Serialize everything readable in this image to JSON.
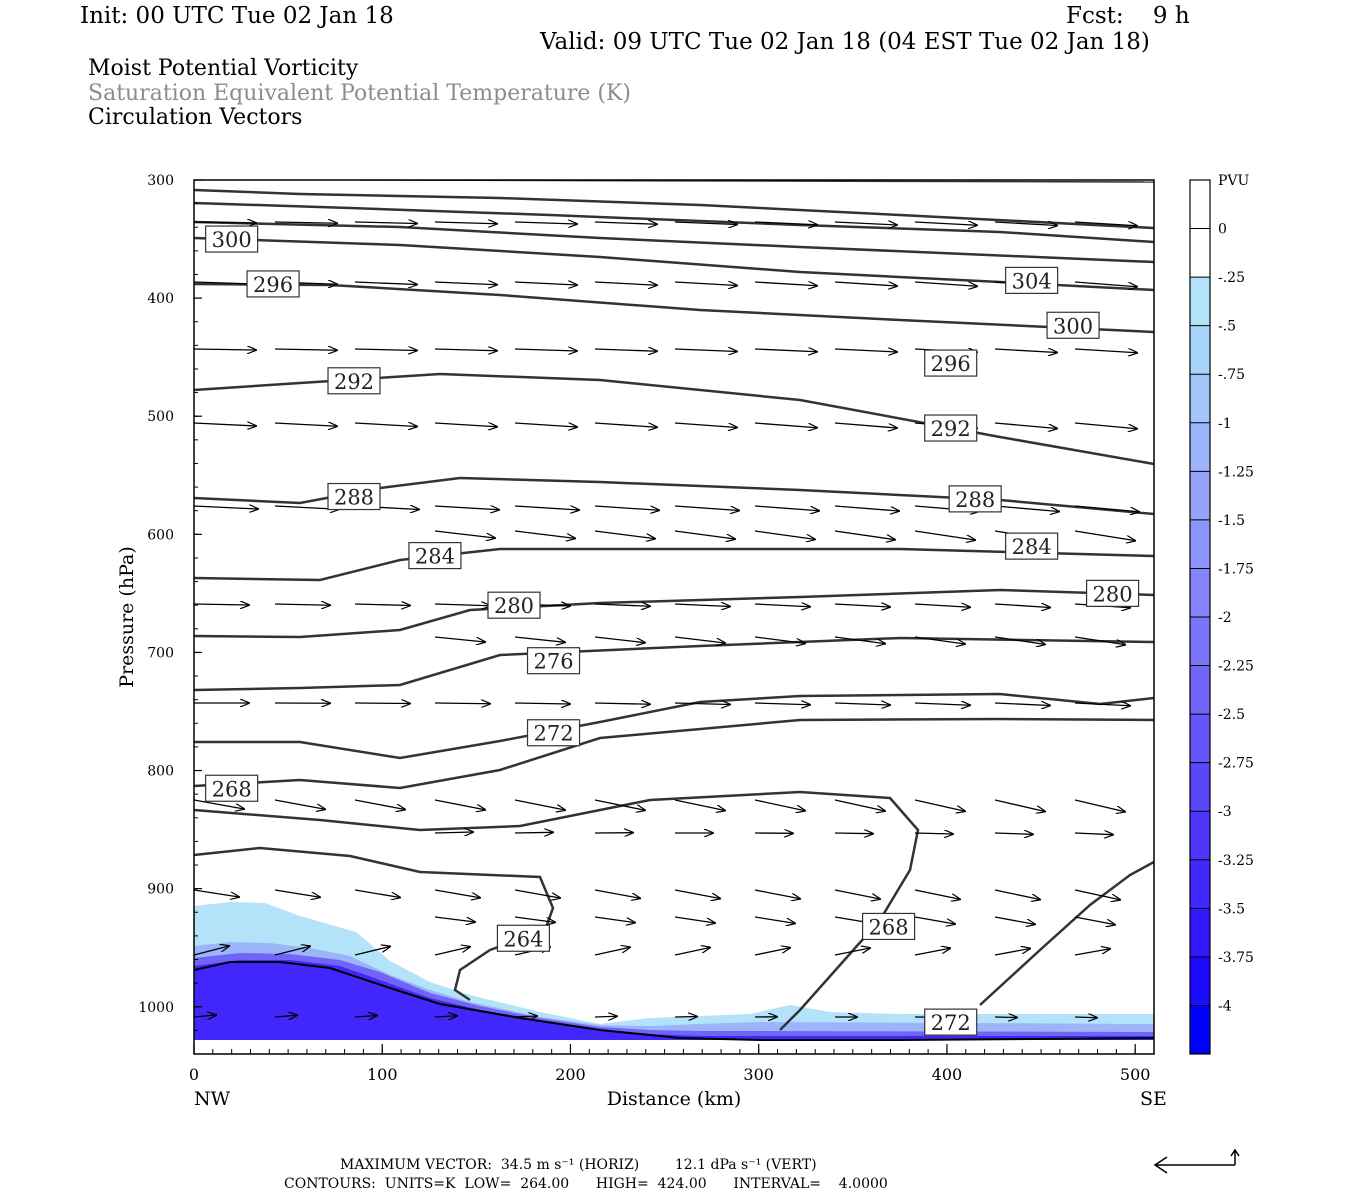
{
  "header": {
    "init": "Init: 00 UTC Tue 02 Jan 18",
    "fcst": "Fcst:    9 h",
    "valid": "Valid: 09 UTC Tue 02 Jan 18 (04 EST Tue 02 Jan 18)"
  },
  "fields": {
    "pv": "Moist Potential Vorticity",
    "theta": "Saturation Equivalent Potential Temperature (K)",
    "vectors": "Circulation Vectors"
  },
  "footer": {
    "max_vector": "MAXIMUM VECTOR:  34.5 m s⁻¹ (HORIZ)        12.1 dPa s⁻¹ (VERT)",
    "contours": "CONTOURS:  UNITS=K  LOW=  264.00      HIGH=  424.00      INTERVAL=    4.0000"
  },
  "colors": {
    "contour": "#333333",
    "pv_light": "#b4e3f9",
    "pv_dark": "#0000ff",
    "frame": "#000000"
  },
  "chart_data": {
    "type": "cross-section",
    "xlabel": "Distance (km)",
    "ylabel": "Pressure (hPa)",
    "xlim": [
      0,
      510
    ],
    "ylim": [
      1040,
      300
    ],
    "x_ticks": [
      0,
      100,
      200,
      300,
      400,
      500
    ],
    "y_ticks": [
      300,
      400,
      500,
      600,
      700,
      800,
      900,
      1000
    ],
    "x_end_labels": [
      "NW",
      "SE"
    ],
    "colorbar": {
      "title": "PVU",
      "levels": [
        "0",
        "-.25",
        "-.5",
        "-.75",
        "-1",
        "-1.25",
        "-1.5",
        "-1.75",
        "-2",
        "-2.25",
        "-2.5",
        "-2.75",
        "-3",
        "-3.25",
        "-3.5",
        "-3.75",
        "-4"
      ],
      "colors": [
        "#ffffff",
        "#ffffff",
        "#b4e3f9",
        "#a9d4fa",
        "#a3c4fa",
        "#9cb4f9",
        "#93a4f9",
        "#8b94f8",
        "#8384f9",
        "#7a74f9",
        "#7064f9",
        "#6654fa",
        "#5b45fa",
        "#4f35fb",
        "#4127fc",
        "#3218fd",
        "#1c0bfe",
        "#0000ff"
      ]
    },
    "contour_labels": [
      {
        "text": "300",
        "x": 20,
        "p": 350
      },
      {
        "text": "296",
        "x": 42,
        "p": 388
      },
      {
        "text": "304",
        "x": 445,
        "p": 385
      },
      {
        "text": "300",
        "x": 467,
        "p": 423
      },
      {
        "text": "292",
        "x": 85,
        "p": 470
      },
      {
        "text": "296",
        "x": 402,
        "p": 455
      },
      {
        "text": "292",
        "x": 402,
        "p": 510
      },
      {
        "text": "288",
        "x": 85,
        "p": 568
      },
      {
        "text": "288",
        "x": 415,
        "p": 570
      },
      {
        "text": "284",
        "x": 128,
        "p": 618
      },
      {
        "text": "284",
        "x": 445,
        "p": 610
      },
      {
        "text": "280",
        "x": 170,
        "p": 660
      },
      {
        "text": "280",
        "x": 488,
        "p": 650
      },
      {
        "text": "276",
        "x": 191,
        "p": 707
      },
      {
        "text": "272",
        "x": 191,
        "p": 768
      },
      {
        "text": "268",
        "x": 20,
        "p": 815
      },
      {
        "text": "264",
        "x": 175,
        "p": 942
      },
      {
        "text": "268",
        "x": 369,
        "p": 932
      },
      {
        "text": "272",
        "x": 402,
        "p": 1013
      }
    ]
  }
}
